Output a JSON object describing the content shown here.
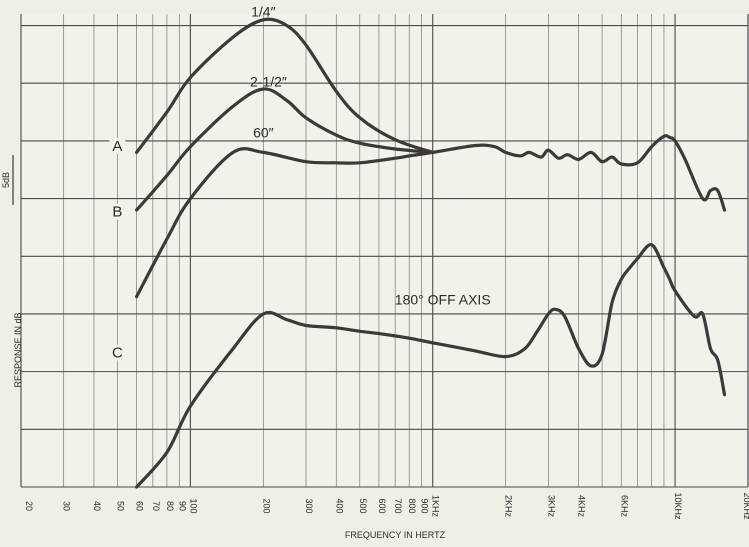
{
  "chart_data": {
    "type": "line",
    "xscale": "log",
    "xlim": [
      20,
      20000
    ],
    "ylim": [
      -29,
      12
    ],
    "grid": true,
    "xlabel": "FREQUENCY IN HERTZ",
    "ylabel": "RESPONSE IN dB",
    "scale_label": "5dB",
    "tick_labels": [
      "20",
      "30",
      "40",
      "50",
      "60",
      "70",
      "80",
      "90",
      "100",
      "200",
      "300",
      "400",
      "500",
      "600",
      "700",
      "800",
      "900",
      "1KHz",
      "2KHz",
      "3KHz",
      "4KHz",
      "6KHz",
      "10KHz",
      "20KHz"
    ],
    "tick_values": [
      20,
      30,
      40,
      50,
      60,
      70,
      80,
      90,
      100,
      200,
      300,
      400,
      500,
      600,
      700,
      800,
      900,
      1000,
      2000,
      3000,
      4000,
      6000,
      10000,
      20000
    ],
    "curve_letters": [
      {
        "text": "A",
        "x": 50,
        "y": 0.3
      },
      {
        "text": "B",
        "x": 50,
        "y": -5.4
      },
      {
        "text": "C",
        "x": 50,
        "y": -17.6
      }
    ],
    "annotations": [
      {
        "text": "1/4″",
        "x": 200,
        "y": 11.8
      },
      {
        "text": "2-1/2″",
        "x": 210,
        "y": 5.7
      },
      {
        "text": "60″",
        "x": 200,
        "y": 1.3
      },
      {
        "text": "180° OFF AXIS",
        "x": 1100,
        "y": -13.2
      }
    ],
    "series": [
      {
        "x": [
          60,
          80,
          100,
          150,
          200,
          250,
          300,
          400,
          500,
          700,
          1000
        ],
        "y": [
          0,
          3.5,
          6.5,
          10,
          11.5,
          11,
          9.3,
          5.3,
          3,
          1.1,
          0
        ]
      },
      {
        "x": [
          60,
          80,
          100,
          150,
          200,
          250,
          300,
          400,
          500,
          700,
          1000
        ],
        "y": [
          -5,
          -2,
          0.5,
          4,
          5.5,
          4.5,
          3,
          1.5,
          0.8,
          0.3,
          0
        ]
      },
      {
        "x": [
          60,
          80,
          100,
          150,
          200,
          300,
          400,
          500,
          700,
          800,
          1000,
          1500,
          1800,
          2000,
          2300,
          2500,
          2800,
          3000,
          3300,
          3600,
          4000,
          4500,
          5000,
          5500,
          6000,
          7000,
          8000,
          9000,
          9500,
          10000,
          11000,
          13000,
          14000,
          15000,
          16000
        ],
        "y": [
          -12.5,
          -7.5,
          -4,
          0,
          0,
          -0.8,
          -0.9,
          -0.9,
          -0.5,
          -0.3,
          0,
          0.6,
          0.5,
          0,
          -0.3,
          0,
          -0.4,
          0.2,
          -0.5,
          -0.2,
          -0.6,
          0,
          -0.8,
          -0.4,
          -1,
          -0.9,
          0.5,
          1.4,
          1.3,
          1,
          -0.6,
          -4,
          -3.3,
          -3.3,
          -5
        ]
      },
      {
        "x": [
          60,
          80,
          100,
          150,
          200,
          250,
          300,
          400,
          500,
          600,
          800,
          1000,
          1500,
          2000,
          2400,
          2700,
          3000,
          3200,
          3500,
          4000,
          4500,
          5000,
          5500,
          6000,
          6500,
          7000,
          8000,
          9000,
          9500,
          10000,
          12000,
          13000,
          14000,
          15000,
          16000
        ],
        "y": [
          -29,
          -26,
          -22,
          -17,
          -14,
          -14.5,
          -15,
          -15.2,
          -15.5,
          -15.7,
          -16.1,
          -16.5,
          -17.2,
          -17.7,
          -17,
          -15.5,
          -14,
          -13.6,
          -14.2,
          -17,
          -18.5,
          -17.5,
          -13,
          -11,
          -10,
          -9.2,
          -8,
          -10,
          -11,
          -12,
          -14.2,
          -14,
          -17,
          -18,
          -21
        ]
      }
    ]
  }
}
